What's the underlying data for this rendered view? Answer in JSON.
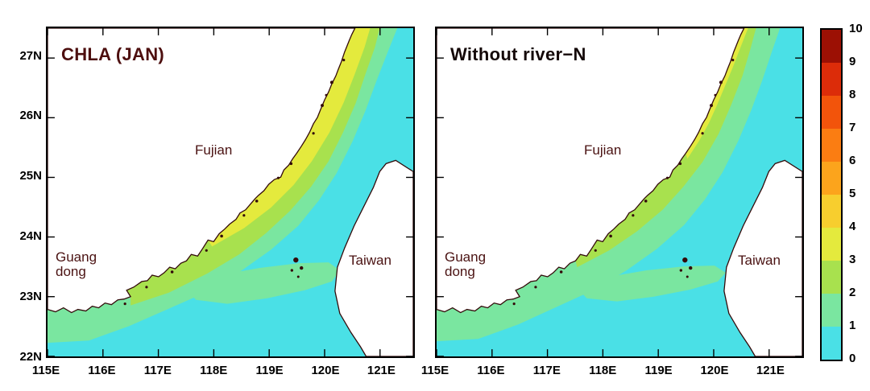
{
  "panels": [
    {
      "title": "CHLA (JAN)",
      "title_color": "#4d0f0f",
      "labels": {
        "fujian": "Fujian",
        "guang": "Guang",
        "dong": "dong",
        "taiwan": "Taiwan"
      }
    },
    {
      "title": "Without river−N",
      "title_color": "#140808",
      "labels": {
        "fujian": "Fujian",
        "guang": "Guang",
        "dong": "dong",
        "taiwan": "Taiwan"
      }
    }
  ],
  "axes": {
    "lat_ticks": [
      "27N",
      "26N",
      "25N",
      "24N",
      "23N",
      "22N"
    ],
    "lon_ticks": [
      "115E",
      "116E",
      "117E",
      "118E",
      "119E",
      "120E",
      "121E"
    ]
  },
  "colorbar": {
    "tick_labels_bottom_to_top": [
      "0",
      "1",
      "2",
      "3",
      "4",
      "5",
      "6",
      "7",
      "8",
      "9",
      "10"
    ],
    "colors_bottom_to_top": [
      "#4ae0e6",
      "#7ae6a0",
      "#a8e14e",
      "#e4ea3d",
      "#f7ce2e",
      "#fca41c",
      "#fb7d12",
      "#f2540b",
      "#dc2c09",
      "#9c1004"
    ]
  },
  "map_colors": {
    "sea": "#4ae0e6",
    "band_1_2": "#7ae6a0",
    "band_2_3": "#a8e14e",
    "band_3_4": "#e4ea3d",
    "land": "#ffffff",
    "coastline": "#330a0a"
  },
  "chart_data": {
    "type": "heatmap",
    "subtype": "filled-contour-map",
    "variable": "CHLA",
    "colorbar": {
      "min": 0,
      "max": 10,
      "ticks": [
        0,
        1,
        2,
        3,
        4,
        5,
        6,
        7,
        8,
        9,
        10
      ]
    },
    "x_axis": {
      "tick_labels": [
        "115E",
        "116E",
        "117E",
        "118E",
        "119E",
        "120E",
        "121E"
      ],
      "range_deg_e": [
        115,
        121.6
      ]
    },
    "y_axis": {
      "tick_labels": [
        "22N",
        "23N",
        "24N",
        "25N",
        "26N",
        "27N"
      ],
      "range_deg_n": [
        22,
        27.5
      ]
    },
    "panels": [
      {
        "title": "CHLA (JAN)",
        "values": {
          "offshore_open_sea": "0-1",
          "mid_strait_patch": "1-2",
          "coastal_band": "2-3",
          "nearshore_fujian": "3-4"
        }
      },
      {
        "title": "Without river−N",
        "values": {
          "offshore_open_sea": "0-1",
          "mid_strait_patch": "1-2",
          "coastal_band": "1-2",
          "nearshore_fujian": "2-3"
        }
      }
    ],
    "map_labels": [
      "Guang dong",
      "Fujian",
      "Taiwan"
    ],
    "legend_position": "right-colorbar",
    "grid": false
  }
}
